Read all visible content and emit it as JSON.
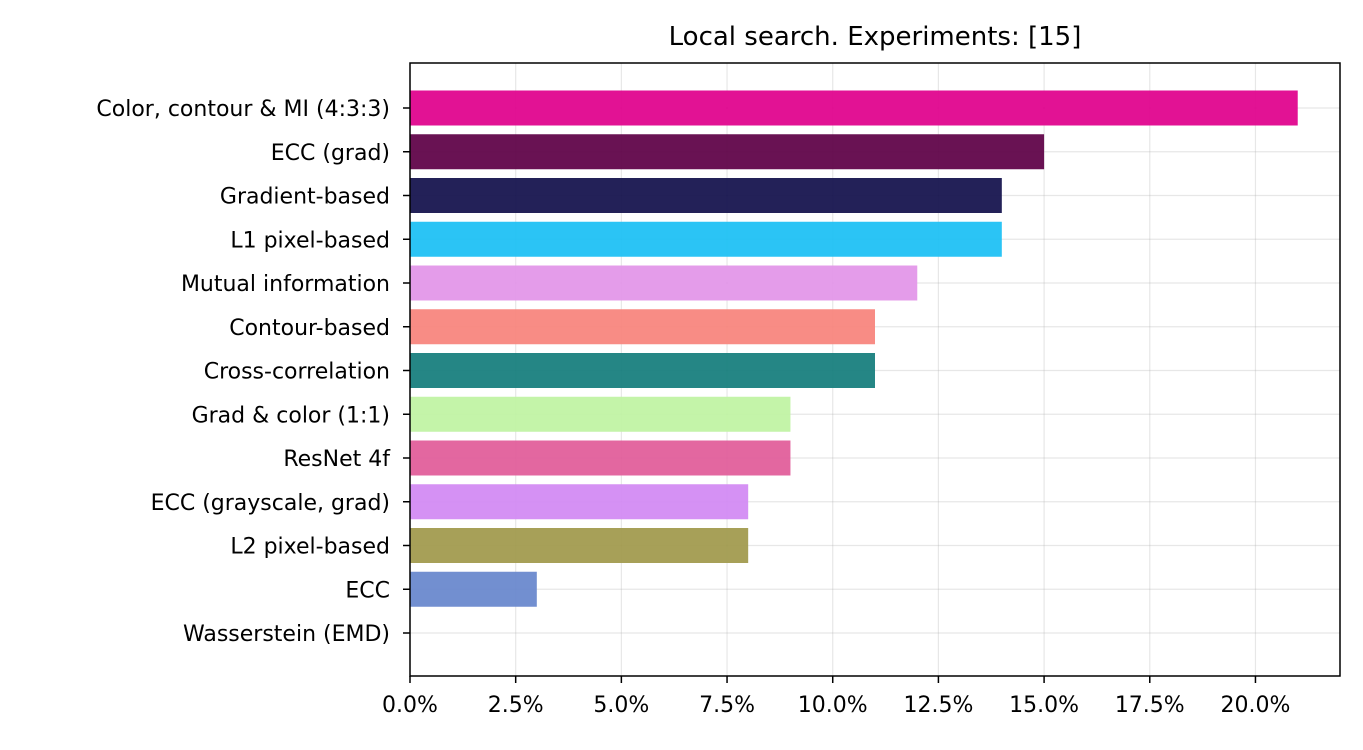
{
  "chart_data": {
    "type": "bar",
    "orientation": "horizontal",
    "title": "Local search. Experiments: [15]",
    "xlabel": "",
    "ylabel": "",
    "categories": [
      "Color, contour & MI (4:3:3)",
      "ECC (grad)",
      "Gradient-based",
      "L1 pixel-based",
      "Mutual information",
      "Contour-based",
      "Cross-correlation",
      "Grad & color (1:1)",
      "ResNet 4f",
      "ECC (grayscale, grad)",
      "L2 pixel-based",
      "ECC",
      "Wasserstein (EMD)"
    ],
    "values": [
      21,
      15,
      14,
      14,
      12,
      11,
      11,
      9,
      9,
      8,
      8,
      3,
      0
    ],
    "colors": [
      "#e0008c",
      "#5e0046",
      "#12104b",
      "#1bbff4",
      "#e294e8",
      "#f7837c",
      "#147d7c",
      "#c0f3a3",
      "#e15b99",
      "#d289f3",
      "#a0994b",
      "#6787cc",
      "#ffffff"
    ],
    "xlim": [
      0,
      22
    ],
    "xticks": [
      0,
      2.5,
      5,
      7.5,
      10,
      12.5,
      15,
      17.5,
      20
    ],
    "xtick_labels": [
      "0.0%",
      "2.5%",
      "5.0%",
      "7.5%",
      "10.0%",
      "12.5%",
      "15.0%",
      "17.5%",
      "20.0%"
    ],
    "value_unit": "%",
    "grid": true
  }
}
